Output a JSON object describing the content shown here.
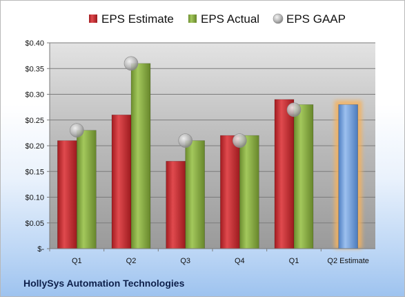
{
  "company": "HollySys Automation Technologies",
  "chart_data": {
    "type": "bar",
    "categories": [
      "Q1",
      "Q2",
      "Q3",
      "Q4",
      "Q1",
      "Q2 Estimate"
    ],
    "series": [
      {
        "name": "EPS Estimate",
        "values": [
          0.21,
          0.26,
          0.17,
          0.22,
          0.29,
          null
        ],
        "color": "#c0252a"
      },
      {
        "name": "EPS Actual",
        "values": [
          0.23,
          0.36,
          0.21,
          0.22,
          0.28,
          null
        ],
        "color": "#80a33d"
      },
      {
        "name": "EPS GAAP",
        "type": "scatter",
        "values": [
          0.23,
          0.36,
          0.21,
          0.21,
          0.27,
          null
        ],
        "color": "#b4b4b4"
      }
    ],
    "forecast": {
      "category": "Q2 Estimate",
      "value": 0.28,
      "color": "#6a9ad8",
      "glow": "#f4b25e"
    },
    "ylim": [
      0,
      0.4
    ],
    "yticks": [
      0,
      0.05,
      0.1,
      0.15,
      0.2,
      0.25,
      0.3,
      0.35,
      0.4
    ],
    "ytick_labels": [
      "$-",
      "$0.05",
      "$0.10",
      "$0.15",
      "$0.20",
      "$0.25",
      "$0.30",
      "$0.35",
      "$0.40"
    ],
    "grid": true,
    "legend": "top"
  }
}
